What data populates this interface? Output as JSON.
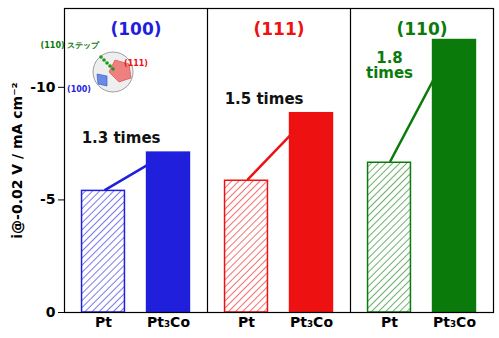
{
  "chart_data": {
    "type": "bar",
    "y_label": "i@-0.02 V / mA cm⁻²",
    "categories": [
      "Pt",
      "Pt₃Co"
    ],
    "ylim": [
      0,
      -13.5
    ],
    "yticks": [
      0,
      -5,
      -10
    ],
    "panels": [
      {
        "title": "(100)",
        "color": "#1f1fdc",
        "values": [
          -5.4,
          -7.1
        ],
        "annotation": "1.3 times"
      },
      {
        "title": "(111)",
        "color": "#ee1111",
        "values": [
          -5.85,
          -8.85
        ],
        "annotation": "1.5 times"
      },
      {
        "title": "(110)",
        "color": "#0a7a0a",
        "values": [
          -6.65,
          -12.1
        ],
        "annotation": "1.8 times"
      }
    ],
    "inset_labels": [
      {
        "text": "(110) ステップ",
        "color": "#0a7a0a"
      },
      {
        "text": "(111)",
        "color": "#ee1111"
      },
      {
        "text": "(100)",
        "color": "#1f1fdc"
      }
    ]
  }
}
